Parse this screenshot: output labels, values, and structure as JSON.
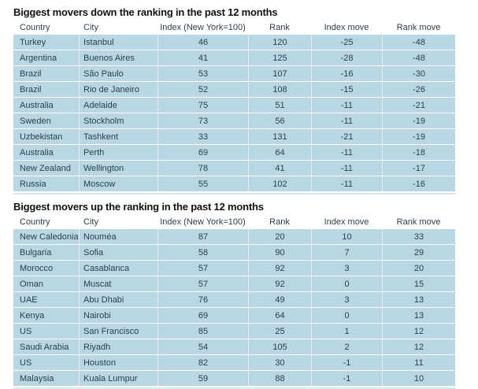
{
  "colors": {
    "row_background": "#b9d7e2",
    "cell_text": "#2d3e49",
    "title_text": "#0e1316",
    "row_separator": "#ffffff",
    "bottom_rule": "#d8e7ee",
    "page_background": "#ffffff"
  },
  "column_keys": [
    "country",
    "city",
    "index",
    "rank",
    "index-move",
    "rank-move"
  ],
  "tables": [
    {
      "title": "Biggest movers down the ranking in the past 12 months",
      "columns": [
        "Country",
        "City",
        "Index (New York=100)",
        "Rank",
        "Index move",
        "Rank move"
      ],
      "rows": [
        [
          "Turkey",
          "Istanbul",
          "46",
          "120",
          "-25",
          "-48"
        ],
        [
          "Argentina",
          "Buenos Aires",
          "41",
          "125",
          "-28",
          "-48"
        ],
        [
          "Brazil",
          "São Paulo",
          "53",
          "107",
          "-16",
          "-30"
        ],
        [
          "Brazil",
          "Rio de Janeiro",
          "52",
          "108",
          "-15",
          "-26"
        ],
        [
          "Australia",
          "Adelaide",
          "75",
          "51",
          "-11",
          "-21"
        ],
        [
          "Sweden",
          "Stockholm",
          "73",
          "56",
          "-11",
          "-19"
        ],
        [
          "Uzbekistan",
          "Tashkent",
          "33",
          "131",
          "-21",
          "-19"
        ],
        [
          "Australia",
          "Perth",
          "69",
          "64",
          "-11",
          "-18"
        ],
        [
          "New Zealand",
          "Wellington",
          "78",
          "41",
          "-11",
          "-17"
        ],
        [
          "Russia",
          "Moscow",
          "55",
          "102",
          "-11",
          "-16"
        ]
      ]
    },
    {
      "title": "Biggest movers up the ranking in the past 12 months",
      "columns": [
        "Country",
        "City",
        "Index (New York=100)",
        "Rank",
        "Index move",
        "Rank move"
      ],
      "rows": [
        [
          "New Caledonia",
          "Nouméa",
          "87",
          "20",
          "10",
          "33"
        ],
        [
          "Bulgaria",
          "Sofia",
          "58",
          "90",
          "7",
          "29"
        ],
        [
          "Morocco",
          "Casablanca",
          "57",
          "92",
          "3",
          "20"
        ],
        [
          "Oman",
          "Muscat",
          "57",
          "92",
          "0",
          "15"
        ],
        [
          "UAE",
          "Abu Dhabi",
          "76",
          "49",
          "3",
          "13"
        ],
        [
          "Kenya",
          "Nairobi",
          "69",
          "64",
          "0",
          "13"
        ],
        [
          "US",
          "San Francisco",
          "85",
          "25",
          "1",
          "12"
        ],
        [
          "Saudi Arabia",
          "Riyadh",
          "54",
          "105",
          "2",
          "12"
        ],
        [
          "US",
          "Houston",
          "82",
          "30",
          "-1",
          "11"
        ],
        [
          "Malaysia",
          "Kuala Lumpur",
          "59",
          "88",
          "-1",
          "10"
        ]
      ]
    }
  ]
}
